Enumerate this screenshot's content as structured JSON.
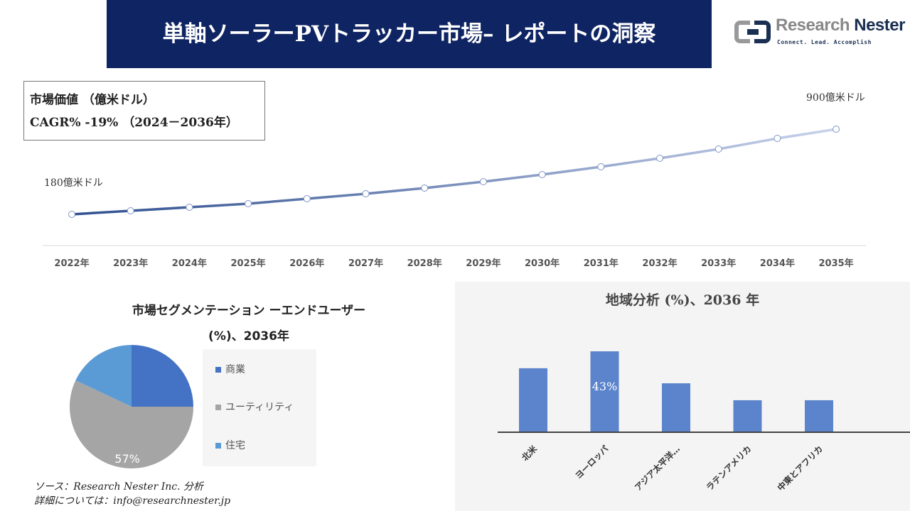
{
  "header": {
    "title": "単軸ソーラーPVトラッカー市場– レポートの洞察"
  },
  "logo": {
    "name_part1": "Research ",
    "name_part2": "Nester",
    "tagline": "Connect. Lead. Accomplish"
  },
  "infobox": {
    "line1": "市場価値 （億米ドル）",
    "line2": "CAGR% -19% （2024－2036年）"
  },
  "source": {
    "line1": "ソース：Research Nester Inc. 分析",
    "line2": "詳細については：info@researchnester.jp"
  },
  "colors": {
    "title_bg": "#0f2462",
    "line_start": "#2f4f8f",
    "line_end": "#c8d2ea",
    "commercial": "#4472c4",
    "utility": "#a5a5a5",
    "residential": "#5b9bd5",
    "bar": "#5b84cc"
  },
  "chart_data": [
    {
      "type": "line",
      "categories": [
        "2022年",
        "2023年",
        "2024年",
        "2025年",
        "2026年",
        "2027年",
        "2028年",
        "2029年",
        "2030年",
        "2031年",
        "2032年",
        "2033年",
        "2034年",
        "2035年"
      ],
      "values": [
        180,
        210,
        240,
        270,
        312,
        354,
        402,
        456,
        516,
        582,
        654,
        732,
        822,
        900
      ],
      "annotations": [
        {
          "index": 0,
          "text": "180億米ドル"
        },
        {
          "index": 13,
          "text": "900億米ドル"
        }
      ]
    },
    {
      "type": "pie",
      "title_line1": "市場セグメンテーション ーエンドユーザー",
      "title_line2": "(%)、2036年",
      "categories": [
        "商業",
        "ユーティリティ",
        "住宅"
      ],
      "values": [
        25,
        57,
        18
      ],
      "data_labels": [
        "",
        "57%",
        ""
      ],
      "legend": "right"
    },
    {
      "type": "bar",
      "title": "地域分析 (%)、2036 年",
      "categories": [
        "北米",
        "ヨーロッパ",
        "アジア太平洋…",
        "ラテンアメリカ",
        "中東とアフリカ"
      ],
      "values": [
        34,
        43,
        26,
        17,
        17
      ],
      "data_labels": [
        "",
        "43%",
        "",
        "",
        ""
      ]
    }
  ]
}
